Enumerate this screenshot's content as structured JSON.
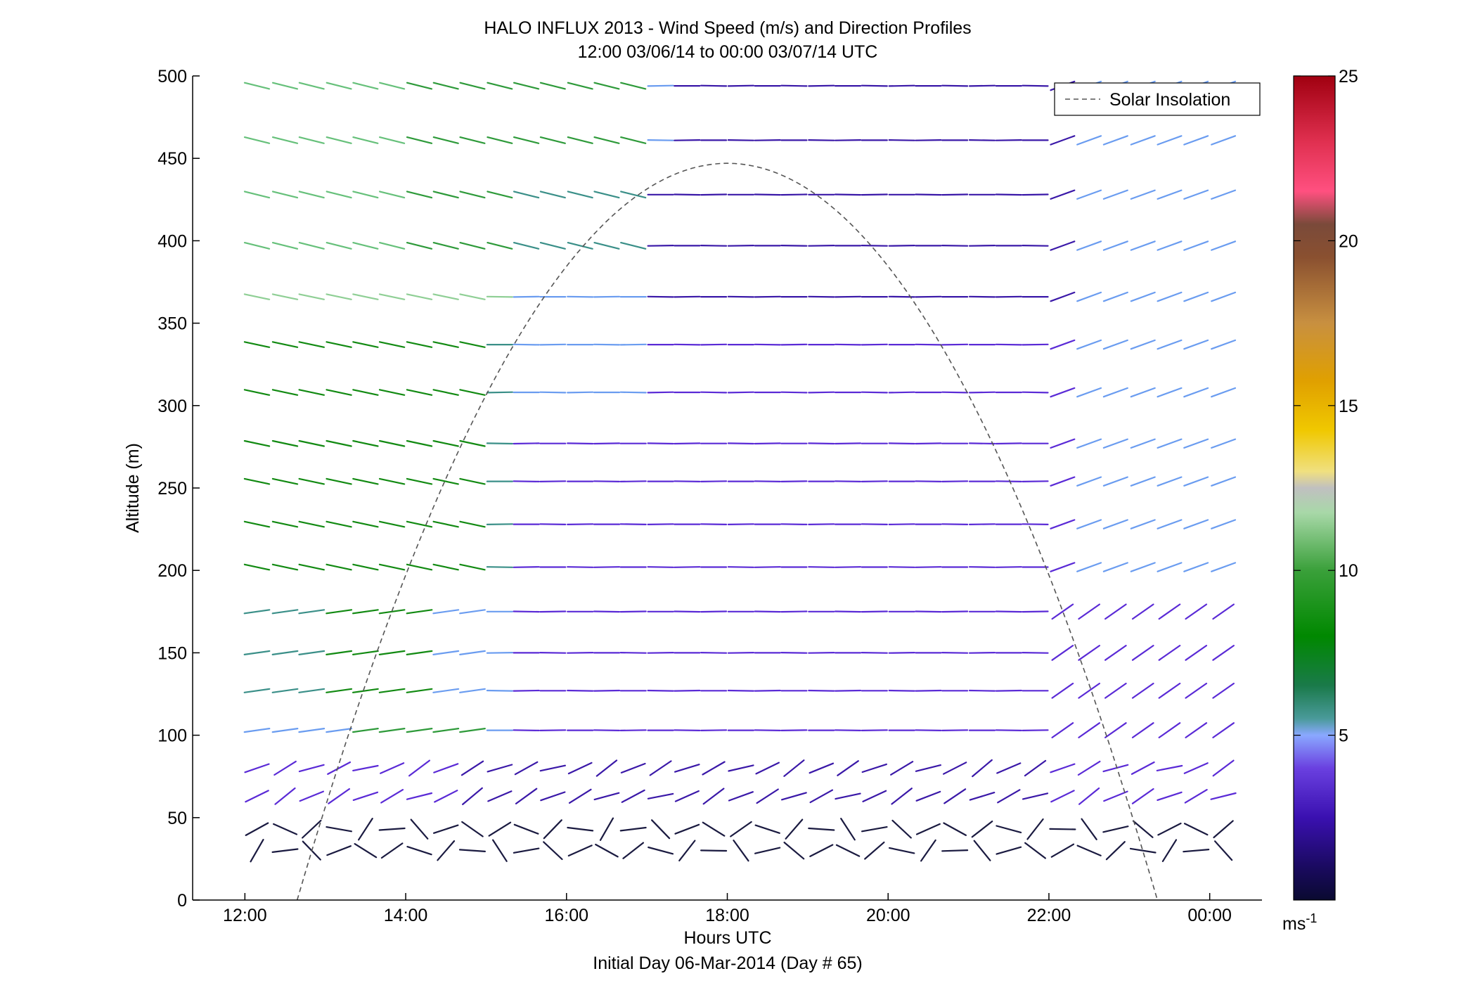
{
  "chart_data": {
    "type": "scatter",
    "title_line1": "HALO INFLUX 2013 - Wind Speed (m/s) and Direction Profiles",
    "title_line2": "12:00 03/06/14 to 00:00 03/07/14  UTC",
    "xlabel": "Hours UTC",
    "xlabel2": "Initial Day 06-Mar-2014 (Day # 65)",
    "ylabel": "Altitude (m)",
    "xlim": [
      11.35,
      24.65
    ],
    "ylim": [
      0,
      500
    ],
    "x_ticks": [
      12,
      14,
      16,
      18,
      20,
      22,
      24
    ],
    "x_tick_labels": [
      "12:00",
      "14:00",
      "16:00",
      "18:00",
      "20:00",
      "22:00",
      "00:00"
    ],
    "y_ticks": [
      0,
      50,
      100,
      150,
      200,
      250,
      300,
      350,
      400,
      450,
      500
    ],
    "y_tick_labels": [
      "0",
      "50",
      "100",
      "150",
      "200",
      "250",
      "300",
      "350",
      "400",
      "450",
      "500"
    ],
    "legend": {
      "label": "Solar Insolation",
      "position": "top-right"
    },
    "colorbar": {
      "min": 0,
      "max": 25,
      "ticks": [
        5,
        10,
        15,
        20,
        25
      ],
      "tick_labels": [
        "5",
        "10",
        "15",
        "20",
        "25"
      ],
      "unit_base": "ms",
      "unit_exp": "-1"
    },
    "solar_curve": {
      "start": 12.65,
      "peak_hour": 18.0,
      "end": 23.35,
      "peak_altitude": 447
    },
    "altitudes": [
      30,
      43,
      63,
      80,
      103,
      127,
      150,
      175,
      202,
      228,
      254,
      277,
      308,
      337,
      366,
      397,
      428,
      461,
      494
    ],
    "times": [
      12.15,
      12.5,
      12.83,
      13.17,
      13.5,
      13.83,
      14.17,
      14.5,
      14.83,
      15.17,
      15.5,
      15.83,
      16.17,
      16.5,
      16.83,
      17.17,
      17.5,
      17.83,
      18.17,
      18.5,
      18.83,
      19.17,
      19.5,
      19.83,
      20.17,
      20.5,
      20.83,
      21.17,
      21.5,
      21.83,
      22.17,
      22.5,
      22.83,
      23.17,
      23.5,
      23.83,
      24.17
    ]
  }
}
